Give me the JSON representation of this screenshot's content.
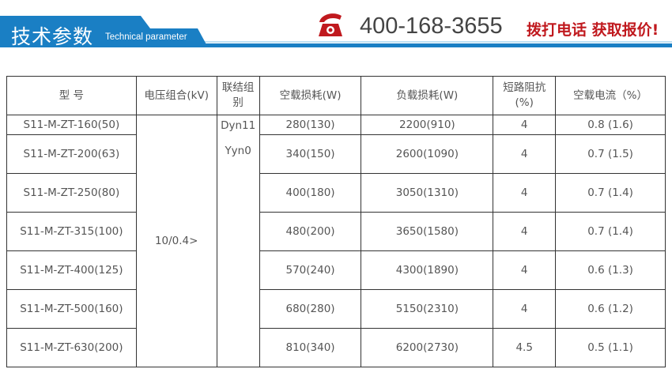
{
  "header": {
    "title": "技术参数",
    "subtitle": "Technical parameter",
    "phone": "400-168-3655",
    "cta": "拨打电话  获取报价!",
    "accent": "#1a7fc4",
    "cta_color": "#c0191e"
  },
  "table": {
    "columns": [
      "型 号",
      "电压组合(kV)",
      "联结组别",
      "空载损耗(W)",
      "负载损耗(W)",
      "短路阻抗(%)",
      "空载电流（%）"
    ],
    "voltage": "10/0.4>",
    "connection": [
      "Dyn11",
      "Yyn0"
    ],
    "rows": [
      {
        "model": "S11-M-ZT-160(50)",
        "no_load": "280(130)",
        "load": "2200(910)",
        "impedance": "4",
        "current": "0.8 (1.6)"
      },
      {
        "model": "S11-M-ZT-200(63)",
        "no_load": "340(150)",
        "load": "2600(1090)",
        "impedance": "4",
        "current": "0.7 (1.5)"
      },
      {
        "model": "S11-M-ZT-250(80)",
        "no_load": "400(180)",
        "load": "3050(1310)",
        "impedance": "4",
        "current": "0.7 (1.4)"
      },
      {
        "model": "S11-M-ZT-315(100)",
        "no_load": "480(200)",
        "load": "3650(1580)",
        "impedance": "4",
        "current": "0.7 (1.4)"
      },
      {
        "model": "S11-M-ZT-400(125)",
        "no_load": "570(240)",
        "load": "4300(1890)",
        "impedance": "4",
        "current": "0.6 (1.3)"
      },
      {
        "model": "S11-M-ZT-500(160)",
        "no_load": "680(280)",
        "load": "5150(2310)",
        "impedance": "4",
        "current": "0.6 (1.2)"
      },
      {
        "model": "S11-M-ZT-630(200)",
        "no_load": "810(340)",
        "load": "6200(2730)",
        "impedance": "4.5",
        "current": "0.5 (1.1)"
      }
    ]
  }
}
